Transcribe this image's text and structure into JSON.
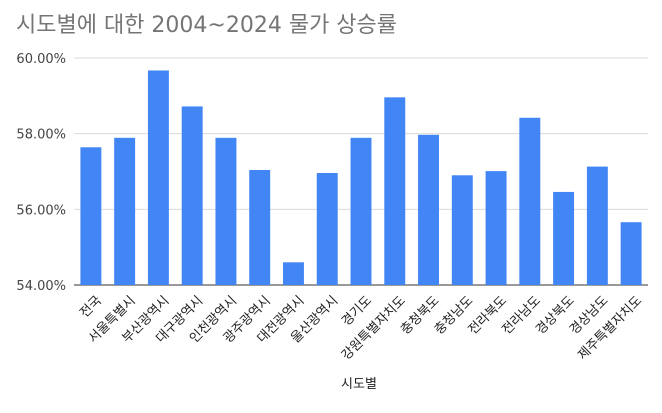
{
  "chart_data": {
    "type": "bar",
    "title": "시도별에 대한 2004~2024 물가 상승률",
    "xlabel": "시도별",
    "ylabel": "",
    "ylim": [
      54,
      60
    ],
    "yticks": [
      "54.00%",
      "56.00%",
      "58.00%",
      "60.00%"
    ],
    "ytick_values": [
      54,
      56,
      58,
      60
    ],
    "grid": true,
    "legend": "none",
    "bar_color": "#4285F4",
    "grid_color": "#D9D9D9",
    "categories": [
      "전국",
      "서울특별시",
      "부산광역시",
      "대구광역시",
      "인천광역시",
      "광주광역시",
      "대전광역시",
      "울산광역시",
      "경기도",
      "강원특별자치도",
      "충청북도",
      "충청남도",
      "전라북도",
      "전라남도",
      "경상북도",
      "경상남도",
      "제주특별자치도"
    ],
    "values": [
      57.64,
      57.89,
      59.67,
      58.72,
      57.89,
      57.04,
      54.6,
      56.96,
      57.89,
      58.96,
      57.97,
      56.9,
      57.01,
      58.42,
      56.46,
      57.13,
      55.66
    ]
  }
}
